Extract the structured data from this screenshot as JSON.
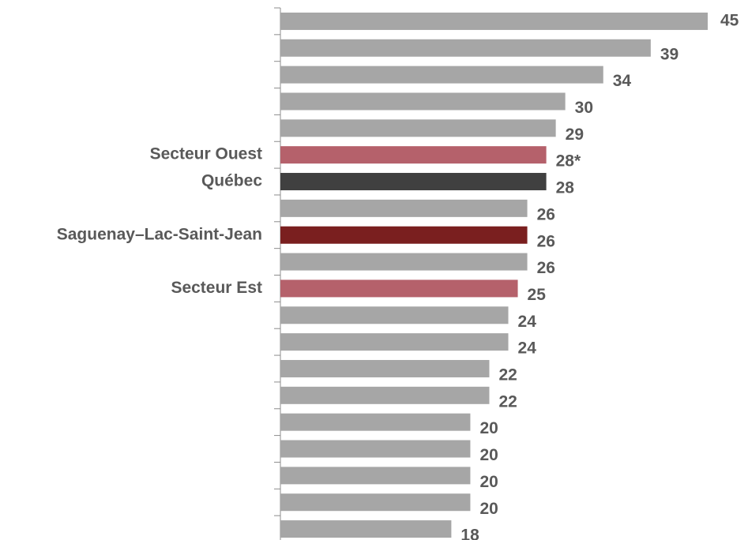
{
  "chart_data": {
    "type": "hbar",
    "categories": [
      null,
      null,
      null,
      null,
      null,
      "Secteur Ouest",
      "Québec",
      null,
      "Saguenay–Lac-Saint-Jean",
      null,
      "Secteur Est",
      null,
      null,
      null,
      null,
      null,
      null,
      null,
      null,
      null
    ],
    "values": [
      45,
      39,
      34,
      30,
      29,
      28,
      28,
      26,
      26,
      26,
      25,
      24,
      24,
      22,
      22,
      20,
      20,
      20,
      20,
      18
    ],
    "value_labels": [
      "45",
      "39",
      "34",
      "30",
      "29",
      "28*",
      "28",
      "26",
      "26",
      "26",
      "25",
      "24",
      "24",
      "22",
      "22",
      "20",
      "20",
      "20",
      "20",
      "18"
    ],
    "colors": [
      "#a6a6a6",
      "#a6a6a6",
      "#a6a6a6",
      "#a6a6a6",
      "#a6a6a6",
      "#b5616b",
      "#404040",
      "#a6a6a6",
      "#7a1f1f",
      "#a6a6a6",
      "#b5616b",
      "#a6a6a6",
      "#a6a6a6",
      "#a6a6a6",
      "#a6a6a6",
      "#a6a6a6",
      "#a6a6a6",
      "#a6a6a6",
      "#a6a6a6",
      "#a6a6a6"
    ]
  }
}
